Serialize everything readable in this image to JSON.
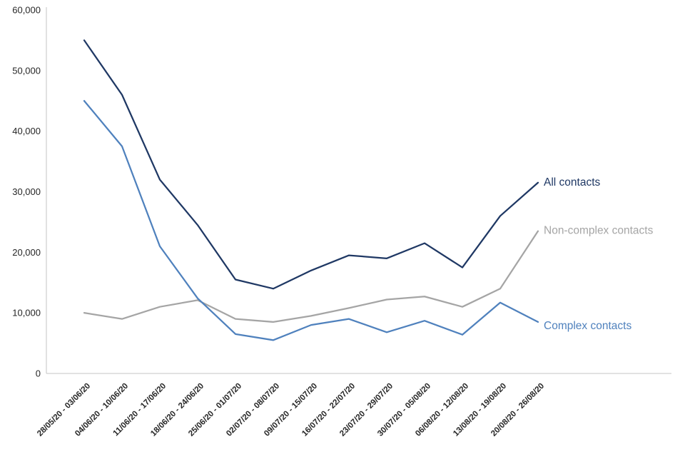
{
  "chart_data": {
    "type": "line",
    "title": "",
    "xlabel": "",
    "ylabel": "",
    "grid": false,
    "legend_position": "end-of-line",
    "ylim": [
      0,
      60000
    ],
    "yticks": [
      0,
      10000,
      20000,
      30000,
      40000,
      50000,
      60000
    ],
    "ytick_labels": [
      "0",
      "10,000",
      "20,000",
      "30,000",
      "40,000",
      "50,000",
      "60,000"
    ],
    "categories": [
      "28/05/20 - 03/06/20",
      "04/06/20 - 10/06/20",
      "11/06/20 - 17/06/20",
      "18/06/20 - 24/06/20",
      "25/06/20 - 01/07/20",
      "02/07/20 - 08/07/20",
      "09/07/20 - 15/07/20",
      "16/07/20 - 22/07/20",
      "23/07/20 - 29/07/20",
      "30/07/20 - 05/08/20",
      "06/08/20 - 12/08/20",
      "13/08/20 - 19/08/20",
      "20/08/20 - 26/08/20"
    ],
    "series": [
      {
        "name": "All contacts",
        "color": "#1f3864",
        "values": [
          55000,
          46000,
          32000,
          24500,
          15500,
          14000,
          17000,
          19500,
          19000,
          21500,
          17500,
          26000,
          31500
        ]
      },
      {
        "name": "Non-complex contacts",
        "color": "#a5a5a5",
        "values": [
          10000,
          9000,
          11000,
          12100,
          9000,
          8500,
          9500,
          10800,
          12200,
          12700,
          11000,
          14000,
          23500
        ]
      },
      {
        "name": "Complex contacts",
        "color": "#4f81bd",
        "values": [
          45000,
          37500,
          21000,
          12400,
          6500,
          5500,
          8000,
          9000,
          6800,
          8700,
          6400,
          11700,
          8500
        ]
      }
    ]
  }
}
